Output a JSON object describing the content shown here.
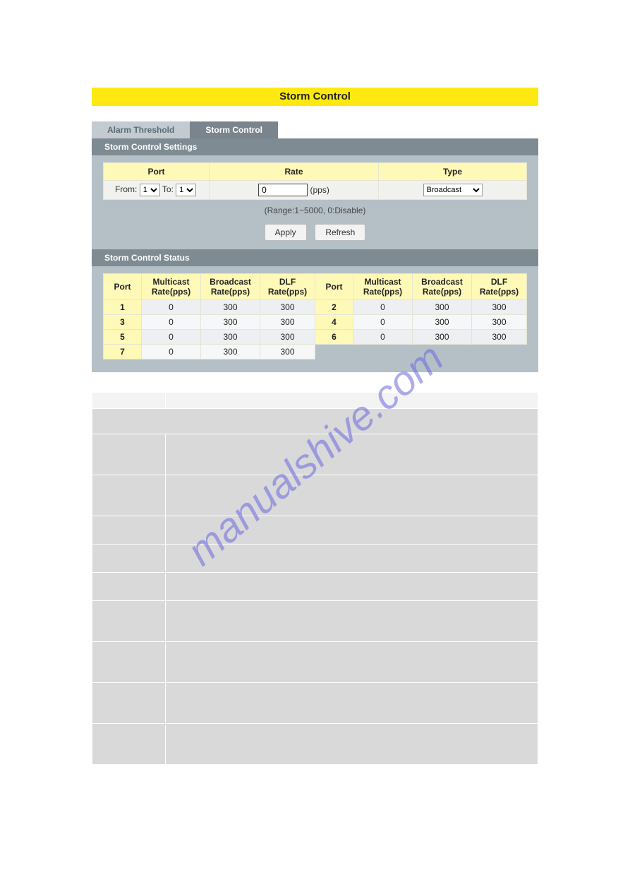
{
  "title": "Storm Control",
  "tabs": {
    "inactive": "Alarm Threshold",
    "active": "Storm Control"
  },
  "sections": {
    "settings": "Storm Control Settings",
    "status": "Storm Control Status"
  },
  "settings": {
    "headers": {
      "port": "Port",
      "rate": "Rate",
      "type": "Type"
    },
    "from_label": "From:",
    "to_label": "To:",
    "from_value": "1",
    "to_value": "1",
    "rate_value": "0",
    "rate_unit": "(pps)",
    "type_value": "Broadcast",
    "range_note": "(Range:1~5000, 0:Disable)",
    "apply_btn": "Apply",
    "refresh_btn": "Refresh"
  },
  "status": {
    "headers": {
      "port": "Port",
      "mcast": "Multicast\nRate(pps)",
      "bcast": "Broadcast\nRate(pps)",
      "dlf": "DLF\nRate(pps)"
    },
    "rows": [
      {
        "l": {
          "port": "1",
          "mcast": "0",
          "bcast": "300",
          "dlf": "300"
        },
        "r": {
          "port": "2",
          "mcast": "0",
          "bcast": "300",
          "dlf": "300"
        }
      },
      {
        "l": {
          "port": "3",
          "mcast": "0",
          "bcast": "300",
          "dlf": "300"
        },
        "r": {
          "port": "4",
          "mcast": "0",
          "bcast": "300",
          "dlf": "300"
        }
      },
      {
        "l": {
          "port": "5",
          "mcast": "0",
          "bcast": "300",
          "dlf": "300"
        },
        "r": {
          "port": "6",
          "mcast": "0",
          "bcast": "300",
          "dlf": "300"
        }
      },
      {
        "l": {
          "port": "7",
          "mcast": "0",
          "bcast": "300",
          "dlf": "300"
        },
        "r": null
      }
    ]
  },
  "lower_row_heights": [
    23,
    36,
    58,
    58,
    40,
    40,
    40,
    58,
    58,
    58,
    58
  ],
  "watermark": "manualshive.com"
}
